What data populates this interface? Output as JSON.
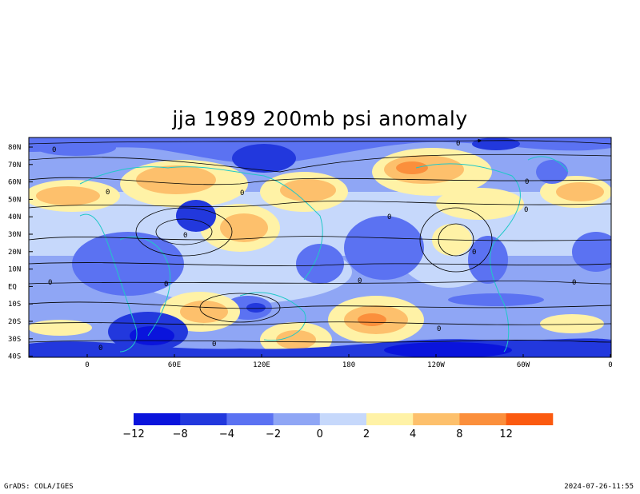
{
  "title": "jja 1989 200mb psi anomaly",
  "lat_labels": [
    "80N",
    "70N",
    "60N",
    "50N",
    "40N",
    "30N",
    "20N",
    "10N",
    "EQ",
    "10S",
    "20S",
    "30S",
    "40S"
  ],
  "lon_labels": [
    "0",
    "60E",
    "120E",
    "180",
    "120W",
    "60W",
    "0"
  ],
  "colorbar": {
    "ticks": [
      "−12",
      "−8",
      "−4",
      "−2",
      "0",
      "2",
      "4",
      "8",
      "12"
    ],
    "colors": [
      "#0a14dc",
      "#2238dd",
      "#5b72f2",
      "#8fa6f5",
      "#c6d8fb",
      "#fff2a6",
      "#fdc06c",
      "#fb8f3c",
      "#fb5a10"
    ]
  },
  "contour_zero_label": "0",
  "footer_left": "GrADS: COLA/IGES",
  "footer_right": "2024-07-26-11:55"
}
